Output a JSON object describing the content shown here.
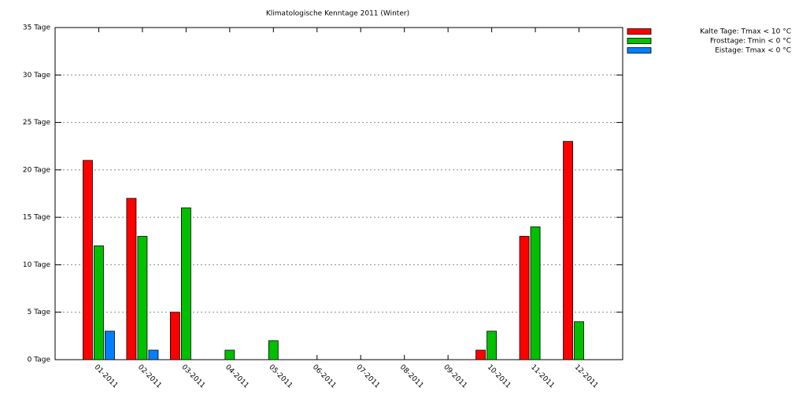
{
  "chart_data": {
    "type": "bar",
    "title": "Klimatologische Kenntage 2011 (Winter)",
    "categories": [
      "01-2011",
      "02-2011",
      "03-2011",
      "04-2011",
      "05-2011",
      "06-2011",
      "07-2011",
      "08-2011",
      "09-2011",
      "10-2011",
      "11-2011",
      "12-2011"
    ],
    "series": [
      {
        "name": "Kalte Tage: Tmax < 10 °C",
        "color": "#ff0000",
        "values": [
          21,
          17,
          5,
          0,
          0,
          0,
          0,
          0,
          0,
          1,
          13,
          23
        ]
      },
      {
        "name": "Frosttage: Tmin < 0 °C",
        "color": "#00c000",
        "values": [
          12,
          13,
          16,
          1,
          2,
          0,
          0,
          0,
          0,
          3,
          14,
          4
        ]
      },
      {
        "name": "Eistage: Tmax < 0 °C",
        "color": "#0080ff",
        "values": [
          3,
          1,
          0,
          0,
          0,
          0,
          0,
          0,
          0,
          0,
          0,
          0
        ]
      }
    ],
    "ylim": [
      0,
      35
    ],
    "yticks": [
      {
        "value": 0,
        "label": "0 Tage"
      },
      {
        "value": 5,
        "label": "5 Tage"
      },
      {
        "value": 10,
        "label": "10 Tage"
      },
      {
        "value": 15,
        "label": "15 Tage"
      },
      {
        "value": 20,
        "label": "20 Tage"
      },
      {
        "value": 25,
        "label": "25 Tage"
      },
      {
        "value": 30,
        "label": "30 Tage"
      },
      {
        "value": 35,
        "label": "35 Tage"
      }
    ],
    "grid": true,
    "legend": "right"
  }
}
